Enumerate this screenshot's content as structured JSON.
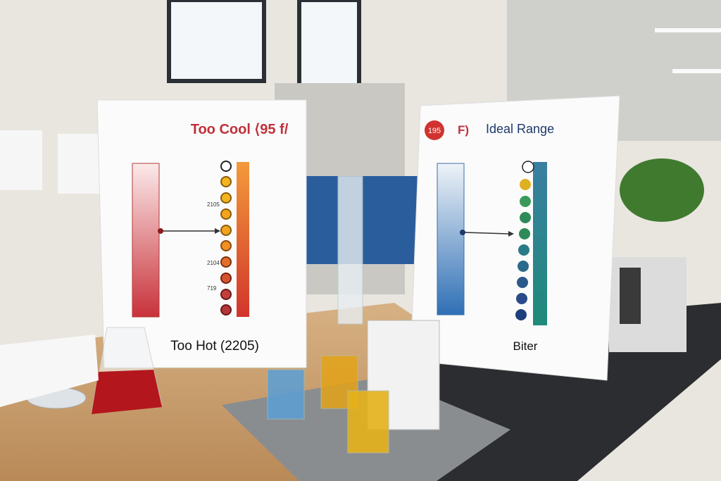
{
  "left_poster": {
    "title": "Too Cool ⟨95  f/",
    "labels": [
      "2105",
      "2104",
      "719"
    ],
    "footer": "Too Hot (2205)"
  },
  "right_poster": {
    "badge": "195",
    "unit": "F)",
    "title": "Ideal Range",
    "footer": "Biter"
  }
}
